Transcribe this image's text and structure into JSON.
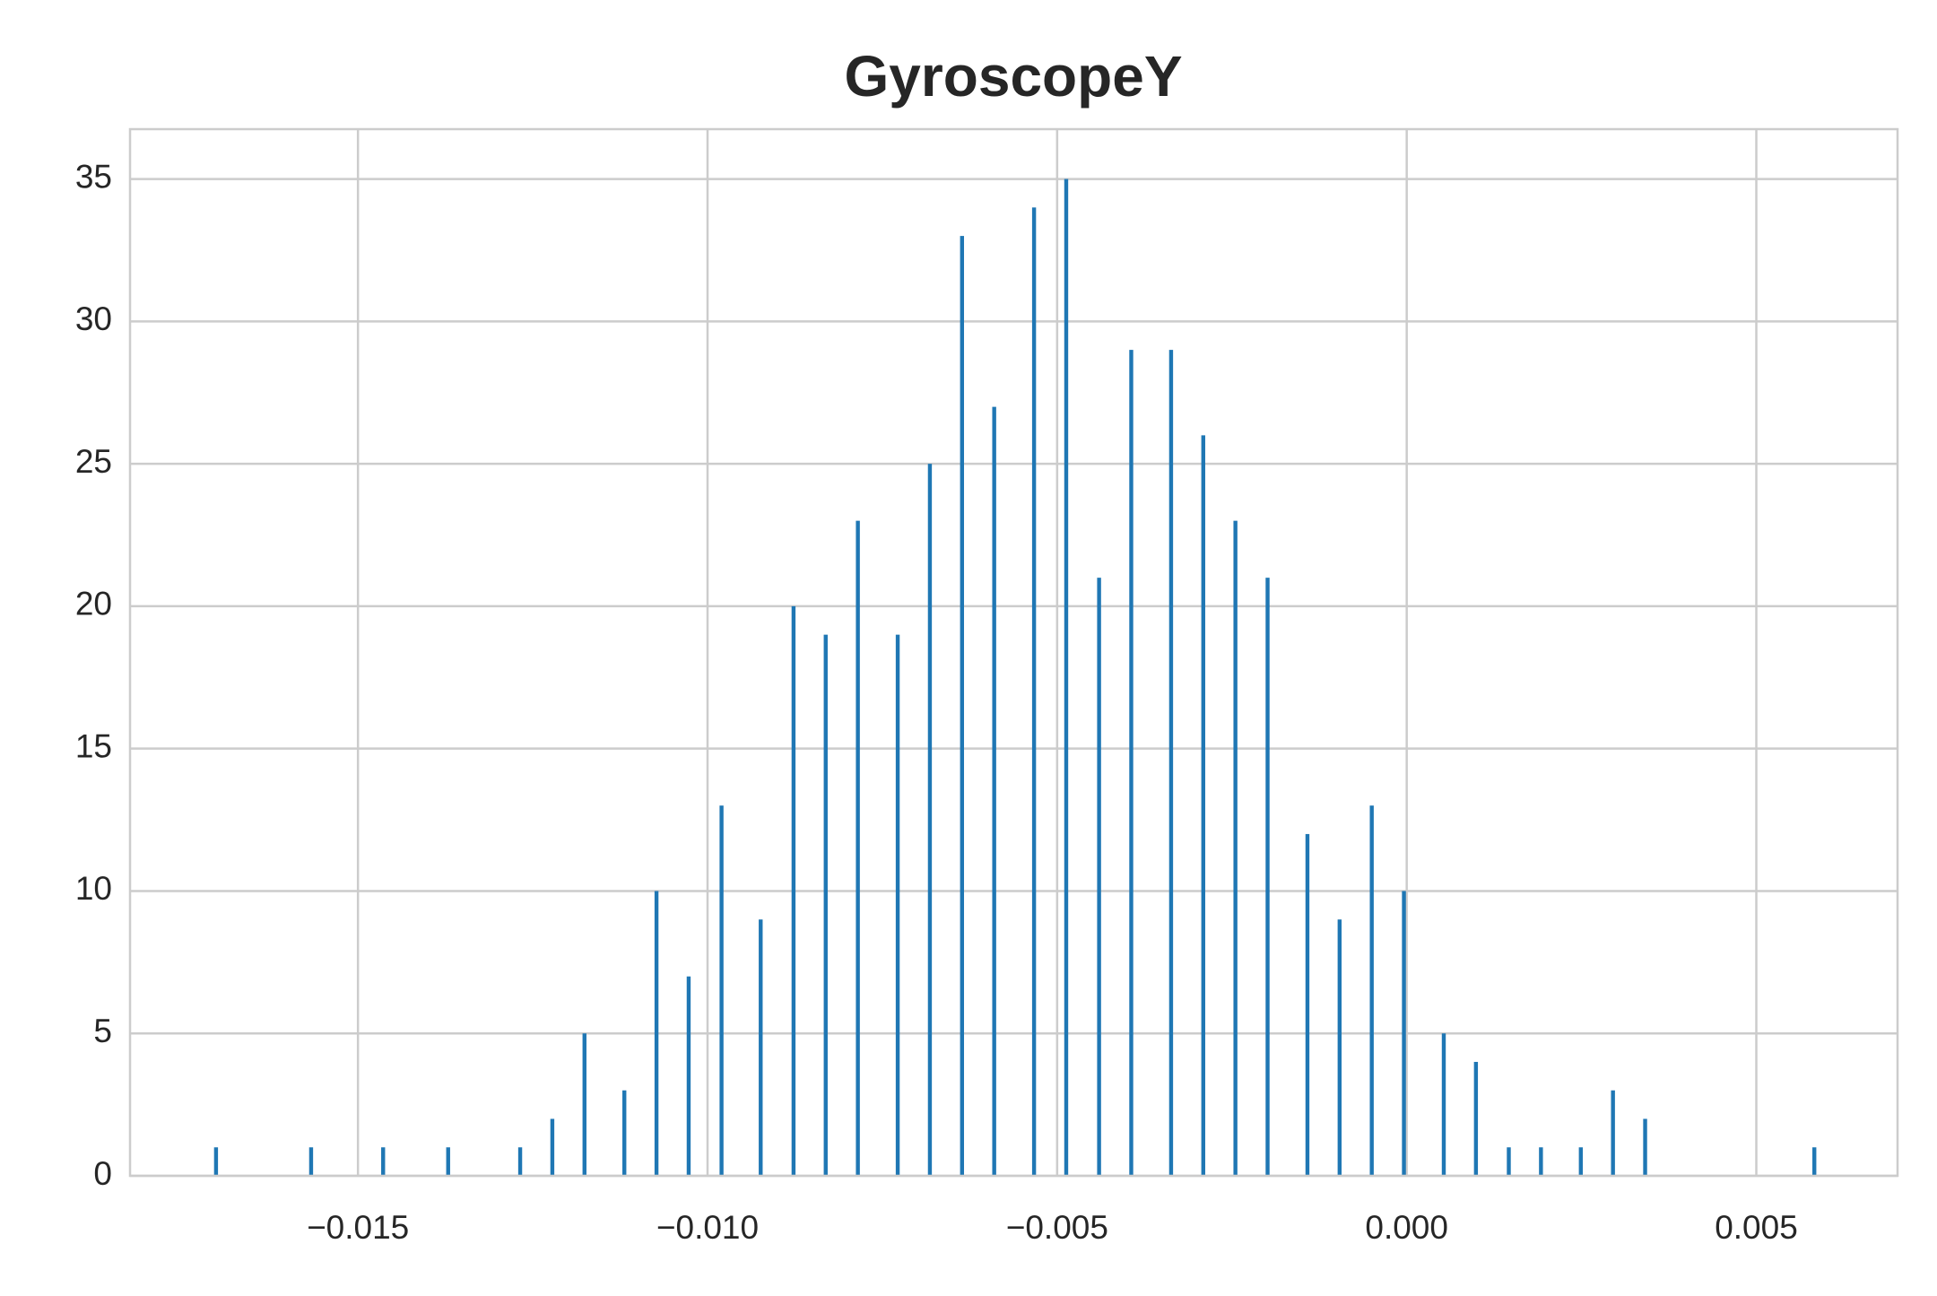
{
  "chart_data": {
    "type": "bar",
    "title": "GyroscopeY",
    "x": [
      -0.01703,
      -0.01567,
      -0.01464,
      -0.01371,
      -0.01268,
      -0.01222,
      -0.01176,
      -0.01119,
      -0.01073,
      -0.01027,
      -0.0098,
      -0.00924,
      -0.00877,
      -0.00831,
      -0.00785,
      -0.00728,
      -0.00682,
      -0.00636,
      -0.0059,
      -0.00533,
      -0.00487,
      -0.0044,
      -0.00394,
      -0.00337,
      -0.00291,
      -0.00245,
      -0.00199,
      -0.00142,
      -0.00096,
      -0.0005,
      -4e-05,
      0.00053,
      0.00099,
      0.00146,
      0.00192,
      0.00249,
      0.00295,
      0.00341,
      0.00583
    ],
    "values": [
      1,
      1,
      1,
      1,
      1,
      2,
      5,
      3,
      10,
      7,
      13,
      9,
      20,
      19,
      23,
      19,
      25,
      33,
      27,
      34,
      35,
      21,
      29,
      29,
      26,
      23,
      21,
      12,
      9,
      13,
      10,
      5,
      4,
      1,
      1,
      1,
      3,
      2,
      1
    ],
    "color": "#1f77b4",
    "xlim": [
      -0.01826,
      0.00702
    ],
    "xticks": [
      {
        "value": -0.015,
        "label": "−0.015"
      },
      {
        "value": -0.01,
        "label": "−0.010"
      },
      {
        "value": -0.005,
        "label": "−0.005"
      },
      {
        "value": 0,
        "label": "0.000"
      },
      {
        "value": 0.005,
        "label": "0.005"
      }
    ],
    "ylim": [
      0,
      36.75
    ],
    "yticks": [
      0,
      5,
      10,
      15,
      20,
      25,
      30,
      35
    ],
    "grid": true
  }
}
